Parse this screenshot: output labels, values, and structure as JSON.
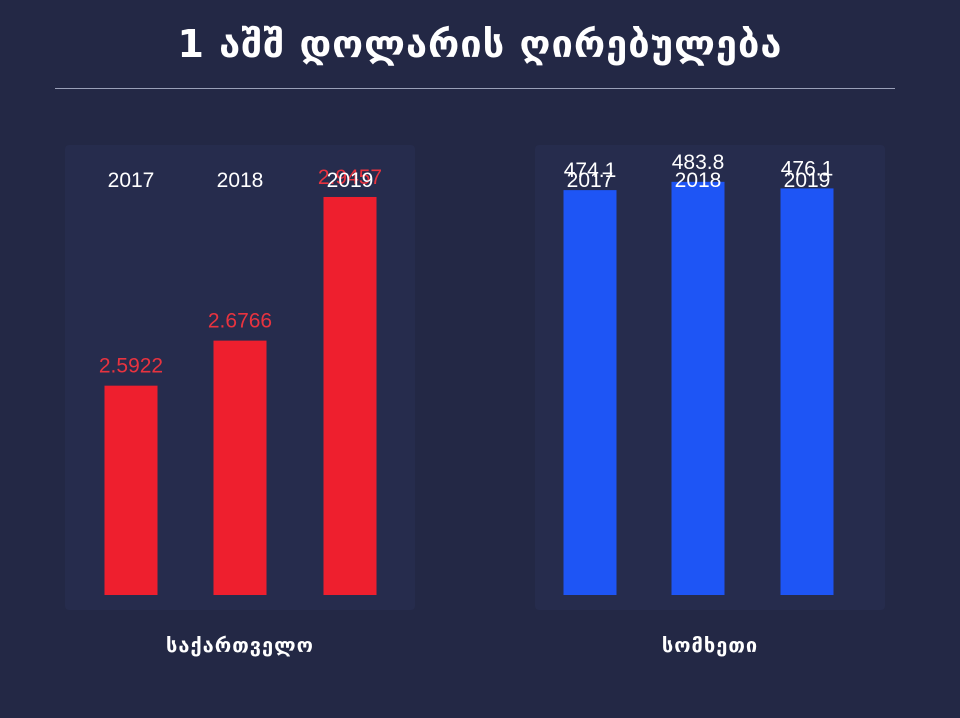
{
  "title": "1 აშშ დოლარის ღირებულება",
  "colors": {
    "background": "#232845",
    "georgia": "#ee1f2e",
    "georgia_label": "#e8333f",
    "armenia": "#1e55f5",
    "armenia_label": "#ffffff"
  },
  "chart_data": [
    {
      "type": "bar",
      "xlabel": "საქართველო",
      "categories": [
        "2017",
        "2018",
        "2019"
      ],
      "values": [
        2.5922,
        2.6766,
        2.9457
      ],
      "value_labels": [
        "2.5922",
        "2.6766",
        "2.9457"
      ],
      "ylim": [
        2.2,
        3.0
      ]
    },
    {
      "type": "bar",
      "xlabel": "სომხეთი",
      "categories": [
        "2017",
        "2018",
        "2019"
      ],
      "values": [
        474.1,
        483.8,
        476.1
      ],
      "value_labels": [
        "474.1",
        "483.8",
        "476.1"
      ],
      "ylim": [
        0,
        500
      ]
    }
  ]
}
